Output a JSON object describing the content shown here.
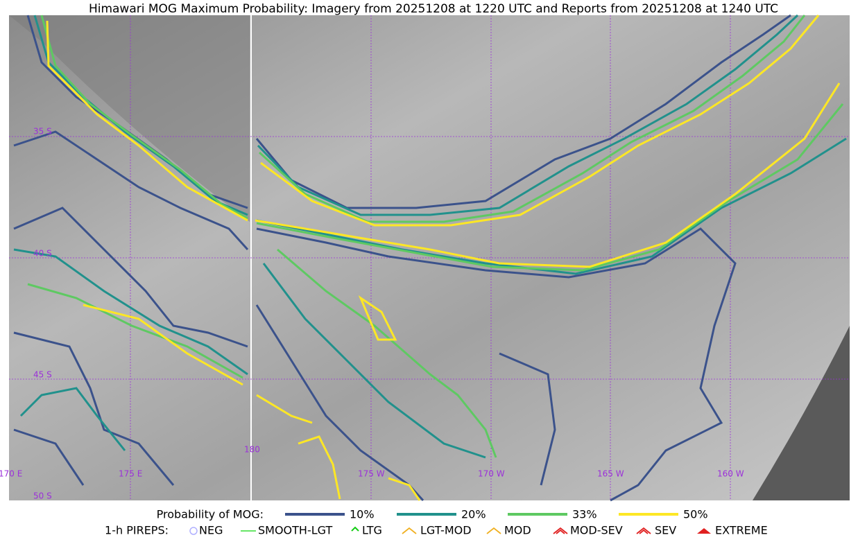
{
  "title": "Himawari MOG Maximum Probability: Imagery from 20251208 at 1220 UTC and Reports from 20251208 at 1240 UTC",
  "map": {
    "lat_labels": [
      "35 S",
      "40 S",
      "45 S",
      "50 S"
    ],
    "lon_labels": [
      "170 E",
      "175 E",
      "180",
      "175 W",
      "170 W",
      "165 W",
      "160 W"
    ]
  },
  "legend": {
    "probability": {
      "label": "Probability of MOG:",
      "items": [
        {
          "label": "10%",
          "color": "#3b528b"
        },
        {
          "label": "20%",
          "color": "#21918c"
        },
        {
          "label": "33%",
          "color": "#5ec962"
        },
        {
          "label": "50%",
          "color": "#fde725"
        }
      ]
    },
    "pireps": {
      "label": "1-h PIREPS:",
      "items": [
        {
          "label": "NEG",
          "color": "#b0b0ff"
        },
        {
          "label": "SMOOTH-LGT",
          "color": "#33dd33"
        },
        {
          "label": "LTG",
          "color": "#11cc11"
        },
        {
          "label": "LGT-MOD",
          "color": "#f0b020"
        },
        {
          "label": "MOD",
          "color": "#f0b020"
        },
        {
          "label": "MOD-SEV",
          "color": "#e02020"
        },
        {
          "label": "SEV",
          "color": "#e02020"
        },
        {
          "label": "EXTREME",
          "color": "#e02020"
        }
      ]
    }
  }
}
